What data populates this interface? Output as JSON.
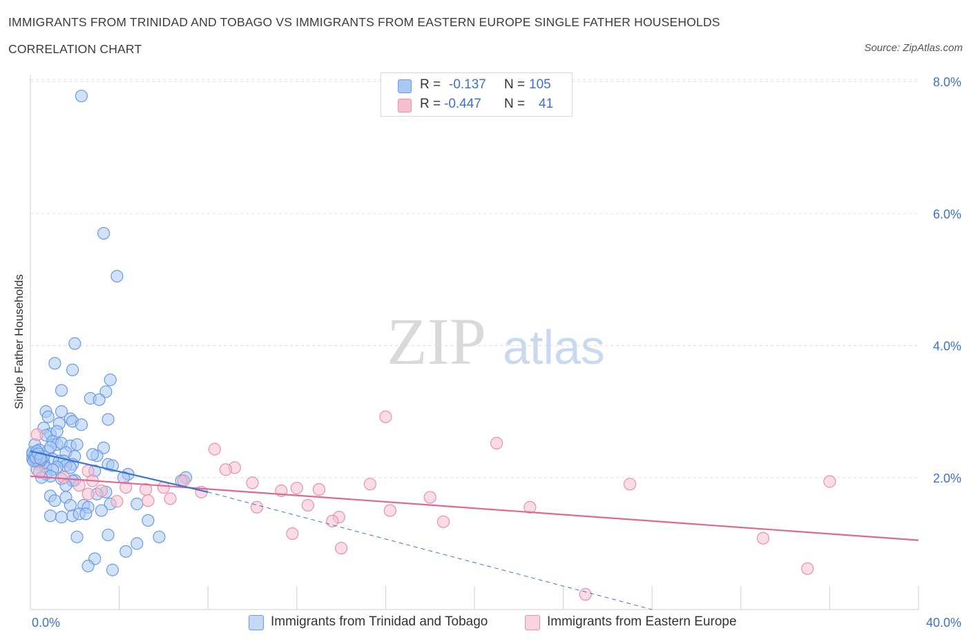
{
  "title": "IMMIGRANTS FROM TRINIDAD AND TOBAGO VS IMMIGRANTS FROM EASTERN EUROPE SINGLE FATHER HOUSEHOLDS",
  "subtitle": "CORRELATION CHART",
  "source": "Source: ZipAtlas.com",
  "watermark": {
    "zip": "ZIP",
    "atlas": "atlas"
  },
  "legend": {
    "r_label": "R =",
    "n_label": "N =",
    "series1": {
      "r": "-0.137",
      "n": "105"
    },
    "series2": {
      "r": "-0.447",
      "n": "41"
    }
  },
  "colors": {
    "blue_fill": "#a9c8f2",
    "blue_stroke": "#6a9be0",
    "blue_line": "#3a74d0",
    "pink_fill": "#f6bfd0",
    "pink_stroke": "#ea8fad",
    "pink_line": "#e0678f",
    "axis_text": "#3b72c8",
    "grid": "#e2e2e2"
  },
  "chart_data": {
    "type": "scatter",
    "xlabel": "",
    "ylabel": "Single Father Households",
    "xlim": [
      0,
      40
    ],
    "ylim": [
      0,
      8
    ],
    "x_tick_labels": [
      "0.0%",
      "40.0%"
    ],
    "y_ticks": [
      2,
      4,
      6,
      8
    ],
    "y_tick_labels": [
      "2.0%",
      "4.0%",
      "6.0%",
      "8.0%"
    ],
    "grid": true,
    "legend_position": "top-center",
    "series": [
      {
        "name": "Immigrants from Trinidad and Tobago",
        "color": "blue",
        "trend": {
          "x": [
            0,
            8
          ],
          "y": [
            2.4,
            1.78
          ],
          "dashed_to": [
            28,
            0
          ]
        },
        "points": [
          [
            2.3,
            7.78
          ],
          [
            3.3,
            5.7
          ],
          [
            3.9,
            5.05
          ],
          [
            2.0,
            4.03
          ],
          [
            1.1,
            3.73
          ],
          [
            1.9,
            3.63
          ],
          [
            3.6,
            3.48
          ],
          [
            1.4,
            3.32
          ],
          [
            3.4,
            3.3
          ],
          [
            2.7,
            3.2
          ],
          [
            3.1,
            3.18
          ],
          [
            0.7,
            3.0
          ],
          [
            1.4,
            3.0
          ],
          [
            0.8,
            2.92
          ],
          [
            1.8,
            2.89
          ],
          [
            3.5,
            2.88
          ],
          [
            1.9,
            2.85
          ],
          [
            1.3,
            2.82
          ],
          [
            2.3,
            2.8
          ],
          [
            0.6,
            2.75
          ],
          [
            0.9,
            2.66
          ],
          [
            0.7,
            2.64
          ],
          [
            1.2,
            2.7
          ],
          [
            0.2,
            2.5
          ],
          [
            1.0,
            2.55
          ],
          [
            1.2,
            2.5
          ],
          [
            1.4,
            2.52
          ],
          [
            1.8,
            2.48
          ],
          [
            2.1,
            2.5
          ],
          [
            3.3,
            2.45
          ],
          [
            0.4,
            2.42
          ],
          [
            0.8,
            2.4
          ],
          [
            0.9,
            2.46
          ],
          [
            1.6,
            2.38
          ],
          [
            0.1,
            2.35
          ],
          [
            0.3,
            2.33
          ],
          [
            2.0,
            2.32
          ],
          [
            3.0,
            2.33
          ],
          [
            0.5,
            2.3
          ],
          [
            1.0,
            2.28
          ],
          [
            1.3,
            2.25
          ],
          [
            2.8,
            2.35
          ],
          [
            0.2,
            2.28
          ],
          [
            0.6,
            2.22
          ],
          [
            1.5,
            2.25
          ],
          [
            1.9,
            2.2
          ],
          [
            0.4,
            2.2
          ],
          [
            1.6,
            2.18
          ],
          [
            0.7,
            2.15
          ],
          [
            1.2,
            2.16
          ],
          [
            1.8,
            2.15
          ],
          [
            3.5,
            2.2
          ],
          [
            3.7,
            2.18
          ],
          [
            0.3,
            2.12
          ],
          [
            1.0,
            2.12
          ],
          [
            2.9,
            2.1
          ],
          [
            0.7,
            2.05
          ],
          [
            0.9,
            2.02
          ],
          [
            4.4,
            2.05
          ],
          [
            0.5,
            2.0
          ],
          [
            1.4,
            1.98
          ],
          [
            2.0,
            1.96
          ],
          [
            1.9,
            1.95
          ],
          [
            4.2,
            2.0
          ],
          [
            7.0,
            2.0
          ],
          [
            6.8,
            1.95
          ],
          [
            1.6,
            1.88
          ],
          [
            3.4,
            1.78
          ],
          [
            3.0,
            1.75
          ],
          [
            0.9,
            1.72
          ],
          [
            1.6,
            1.7
          ],
          [
            1.1,
            1.65
          ],
          [
            3.6,
            1.6
          ],
          [
            4.8,
            1.6
          ],
          [
            2.4,
            1.58
          ],
          [
            2.6,
            1.55
          ],
          [
            1.8,
            1.58
          ],
          [
            3.2,
            1.5
          ],
          [
            0.9,
            1.42
          ],
          [
            1.9,
            1.42
          ],
          [
            2.2,
            1.45
          ],
          [
            2.5,
            1.45
          ],
          [
            1.4,
            1.4
          ],
          [
            5.3,
            1.35
          ],
          [
            2.1,
            1.1
          ],
          [
            3.5,
            1.13
          ],
          [
            5.8,
            1.1
          ],
          [
            4.8,
            1.0
          ],
          [
            4.3,
            0.88
          ],
          [
            2.9,
            0.77
          ],
          [
            2.6,
            0.66
          ],
          [
            3.7,
            0.6
          ],
          [
            0.1,
            2.28
          ],
          [
            0.2,
            2.3
          ],
          [
            0.3,
            2.26
          ],
          [
            0.1,
            2.38
          ],
          [
            0.4,
            2.24
          ],
          [
            0.2,
            2.34
          ],
          [
            0.5,
            2.27
          ],
          [
            0.3,
            2.4
          ],
          [
            0.6,
            2.32
          ],
          [
            0.15,
            2.25
          ],
          [
            0.25,
            2.3
          ],
          [
            0.35,
            2.36
          ],
          [
            0.45,
            2.29
          ]
        ]
      },
      {
        "name": "Immigrants from Eastern Europe",
        "color": "pink",
        "trend": {
          "x": [
            0,
            40
          ],
          "y": [
            2.02,
            1.05
          ]
        },
        "points": [
          [
            0.3,
            2.65
          ],
          [
            16.0,
            2.92
          ],
          [
            21.0,
            2.52
          ],
          [
            8.3,
            2.43
          ],
          [
            9.2,
            2.15
          ],
          [
            8.8,
            2.12
          ],
          [
            2.6,
            2.1
          ],
          [
            0.4,
            2.08
          ],
          [
            6.9,
            1.95
          ],
          [
            10.0,
            1.92
          ],
          [
            36.0,
            1.94
          ],
          [
            27.0,
            1.9
          ],
          [
            15.3,
            1.9
          ],
          [
            2.2,
            1.88
          ],
          [
            4.3,
            1.85
          ],
          [
            12.0,
            1.84
          ],
          [
            6.0,
            1.85
          ],
          [
            11.3,
            1.8
          ],
          [
            13.0,
            1.82
          ],
          [
            5.2,
            1.82
          ],
          [
            3.2,
            1.8
          ],
          [
            7.7,
            1.78
          ],
          [
            2.6,
            1.75
          ],
          [
            18.0,
            1.7
          ],
          [
            6.3,
            1.68
          ],
          [
            5.3,
            1.65
          ],
          [
            3.9,
            1.64
          ],
          [
            12.5,
            1.58
          ],
          [
            10.2,
            1.55
          ],
          [
            22.5,
            1.55
          ],
          [
            16.2,
            1.5
          ],
          [
            13.9,
            1.4
          ],
          [
            13.6,
            1.34
          ],
          [
            18.6,
            1.33
          ],
          [
            11.8,
            1.15
          ],
          [
            33.0,
            1.08
          ],
          [
            14.0,
            0.93
          ],
          [
            35.0,
            0.62
          ],
          [
            25.0,
            0.23
          ],
          [
            2.8,
            1.95
          ],
          [
            1.5,
            2.0
          ]
        ]
      }
    ]
  }
}
